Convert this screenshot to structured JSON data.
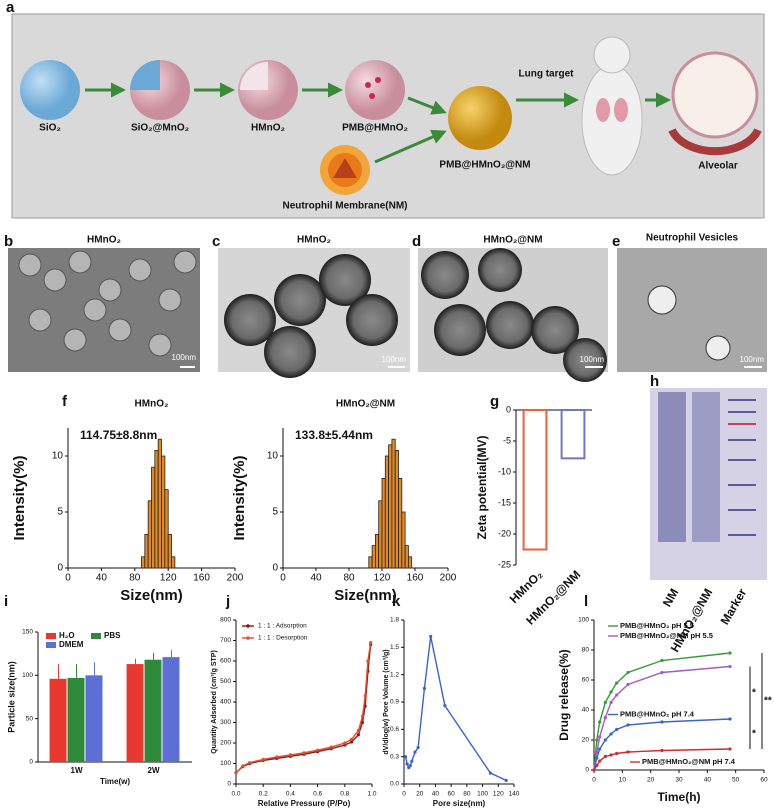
{
  "schematic": {
    "label": "a",
    "items": [
      "SiO₂",
      "SiO₂@MnO₂",
      "HMnO₂",
      "PMB@HMnO₂",
      "PMB@HMnO₂@NM",
      "Lung target",
      "Neutrophil Membrane(NM)",
      "Alveolar"
    ]
  },
  "images": [
    {
      "label": "b",
      "title": "HMnO₂",
      "scale": "100nm"
    },
    {
      "label": "c",
      "title": "HMnO₂",
      "scale": "100nm"
    },
    {
      "label": "d",
      "title": "HMnO₂@NM",
      "scale": "100nm"
    },
    {
      "label": "e",
      "title": "Neutrophil  Vesicles",
      "scale": "100nm"
    }
  ],
  "gel": {
    "label": "h",
    "lanes": [
      "NM",
      "HMnO₂@NM",
      "Marker"
    ]
  },
  "chart_data": [
    {
      "type": "histogram",
      "label": "f",
      "title": "HMnO₂",
      "annotation": "114.75±8.8nm",
      "x_label": "Size(nm)",
      "y_label": "Intensity(%)",
      "color": "#e08a2a",
      "bins": [
        88,
        92,
        96,
        100,
        104,
        108,
        112,
        116,
        120,
        124,
        128
      ],
      "values": [
        1,
        3,
        6,
        9,
        10.5,
        11.5,
        10,
        7,
        3,
        1
      ],
      "xlim": [
        0,
        200
      ],
      "xticks": [
        0,
        40,
        80,
        120,
        160,
        200
      ],
      "ylim": [
        0,
        12.5
      ],
      "yticks": [
        0,
        5,
        10
      ]
    },
    {
      "type": "histogram",
      "title": "HMnO₂@NM",
      "annotation": "133.8±5.44nm",
      "x_label": "Size(nm)",
      "y_label": "Intensity(%)",
      "color": "#e08a2a",
      "bins": [
        104,
        108,
        112,
        116,
        120,
        124,
        128,
        132,
        136,
        140,
        144,
        148,
        152,
        156
      ],
      "values": [
        1,
        2,
        3,
        6,
        8,
        10,
        11,
        11.5,
        10.5,
        8,
        5,
        2,
        1
      ],
      "xlim": [
        0,
        200
      ],
      "xticks": [
        0,
        40,
        80,
        120,
        160,
        200
      ],
      "ylim": [
        0,
        12.5
      ],
      "yticks": [
        0,
        5,
        10
      ]
    },
    {
      "type": "bar",
      "label": "g",
      "y_label": "Zeta potential(MV)",
      "categories": [
        "HMnO₂",
        "HMnO₂@NM"
      ],
      "values": [
        -22.5,
        -7.8
      ],
      "colors": [
        "#e8623a",
        "#6f78c8"
      ],
      "ylim": [
        -25,
        0
      ],
      "yticks": [
        0,
        -5,
        -10,
        -15,
        -20,
        -25
      ]
    },
    {
      "type": "grouped_bar",
      "label": "i",
      "x_label": "Time(w)",
      "y_label": "Particle size(nm)",
      "categories": [
        "1W",
        "2W"
      ],
      "series": [
        {
          "name": "H₂O",
          "color": "#e8382f",
          "values": [
            96,
            113
          ],
          "errors": [
            17,
            6
          ]
        },
        {
          "name": "PBS",
          "color": "#2f8a3a",
          "values": [
            97,
            118
          ],
          "errors": [
            16,
            8
          ]
        },
        {
          "name": "DMEM",
          "color": "#5b6fd6",
          "values": [
            100,
            121
          ],
          "errors": [
            15,
            8
          ]
        }
      ],
      "ylim": [
        0,
        150
      ],
      "yticks": [
        0,
        50,
        100,
        150
      ]
    },
    {
      "type": "line",
      "label": "j",
      "x_label": "Relative Pressure (P/Po)",
      "y_label": "Quantity Adsorbed (cm³/g STP)",
      "x": [
        0,
        0.05,
        0.1,
        0.2,
        0.3,
        0.4,
        0.5,
        0.6,
        0.7,
        0.8,
        0.85,
        0.9,
        0.93,
        0.95,
        0.97,
        0.99
      ],
      "series": [
        {
          "name": "1 : 1 : Adsorption",
          "color": "#8b1a1a",
          "values": [
            55,
            85,
            100,
            115,
            125,
            135,
            145,
            158,
            172,
            190,
            205,
            240,
            300,
            380,
            550,
            680
          ]
        },
        {
          "name": "1 : 1 : Desorption",
          "color": "#e0502c",
          "values": [
            55,
            88,
            104,
            120,
            132,
            142,
            152,
            165,
            180,
            200,
            218,
            260,
            330,
            430,
            600,
            690
          ]
        }
      ],
      "xlim": [
        0,
        1
      ],
      "xticks": [
        {
          "value": 0,
          "label": "0.0"
        },
        0.2,
        0.4,
        0.6,
        0.8,
        {
          "value": 1,
          "label": "1.0"
        }
      ],
      "ylim": [
        0,
        800
      ],
      "yticks": [
        0,
        100,
        200,
        300,
        400,
        500,
        600,
        700,
        800
      ]
    },
    {
      "type": "line",
      "label": "k",
      "x_label": "Pore size(nm)",
      "y_label": "dV/dlog(w) Pore Volume (cm³/g)",
      "x": [
        2,
        4,
        6,
        8,
        10,
        14,
        18,
        26,
        34,
        52,
        110,
        130
      ],
      "series": [
        {
          "color": "#3a64c8",
          "values": [
            0.3,
            0.22,
            0.18,
            0.2,
            0.25,
            0.35,
            0.4,
            1.05,
            1.62,
            0.86,
            0.12,
            0.04
          ]
        }
      ],
      "xlim": [
        0,
        140
      ],
      "xticks": [
        0,
        20,
        40,
        60,
        80,
        100,
        120,
        140
      ],
      "ylim": [
        0,
        1.8
      ],
      "yticks": [
        {
          "value": 0,
          "label": "0.0"
        },
        0.3,
        0.6,
        0.9,
        1.2,
        1.5,
        1.8
      ]
    },
    {
      "type": "line",
      "label": "l",
      "x_label": "Time(h)",
      "y_label": "Drug release(%)",
      "annotations": [
        "*",
        "*",
        "**"
      ],
      "x": [
        0,
        1,
        2,
        4,
        6,
        8,
        12,
        24,
        48
      ],
      "series": [
        {
          "name": "PMB@HMnO₂ pH 5.5",
          "color": "#3a9a3a",
          "values": [
            0,
            20,
            32,
            45,
            52,
            58,
            65,
            73,
            78
          ]
        },
        {
          "name": "PMB@HMnO₂@NM pH 5.5",
          "color": "#a05cc8",
          "values": [
            0,
            12,
            22,
            35,
            45,
            50,
            57,
            65,
            69
          ]
        },
        {
          "name": "PMB@HMnO₂ pH 7.4",
          "color": "#3a64c8",
          "values": [
            0,
            8,
            14,
            20,
            24,
            27,
            30,
            32,
            34
          ]
        },
        {
          "name": "PMB@HMnO₂@NM pH 7.4",
          "color": "#d42a2a",
          "values": [
            0,
            3,
            6,
            9,
            10,
            11,
            12,
            13,
            14
          ]
        }
      ],
      "xlim": [
        0,
        60
      ],
      "xticks": [
        0,
        10,
        20,
        30,
        40,
        50,
        60
      ],
      "ylim": [
        0,
        100
      ],
      "yticks": [
        0,
        20,
        40,
        60,
        80,
        100
      ]
    }
  ]
}
